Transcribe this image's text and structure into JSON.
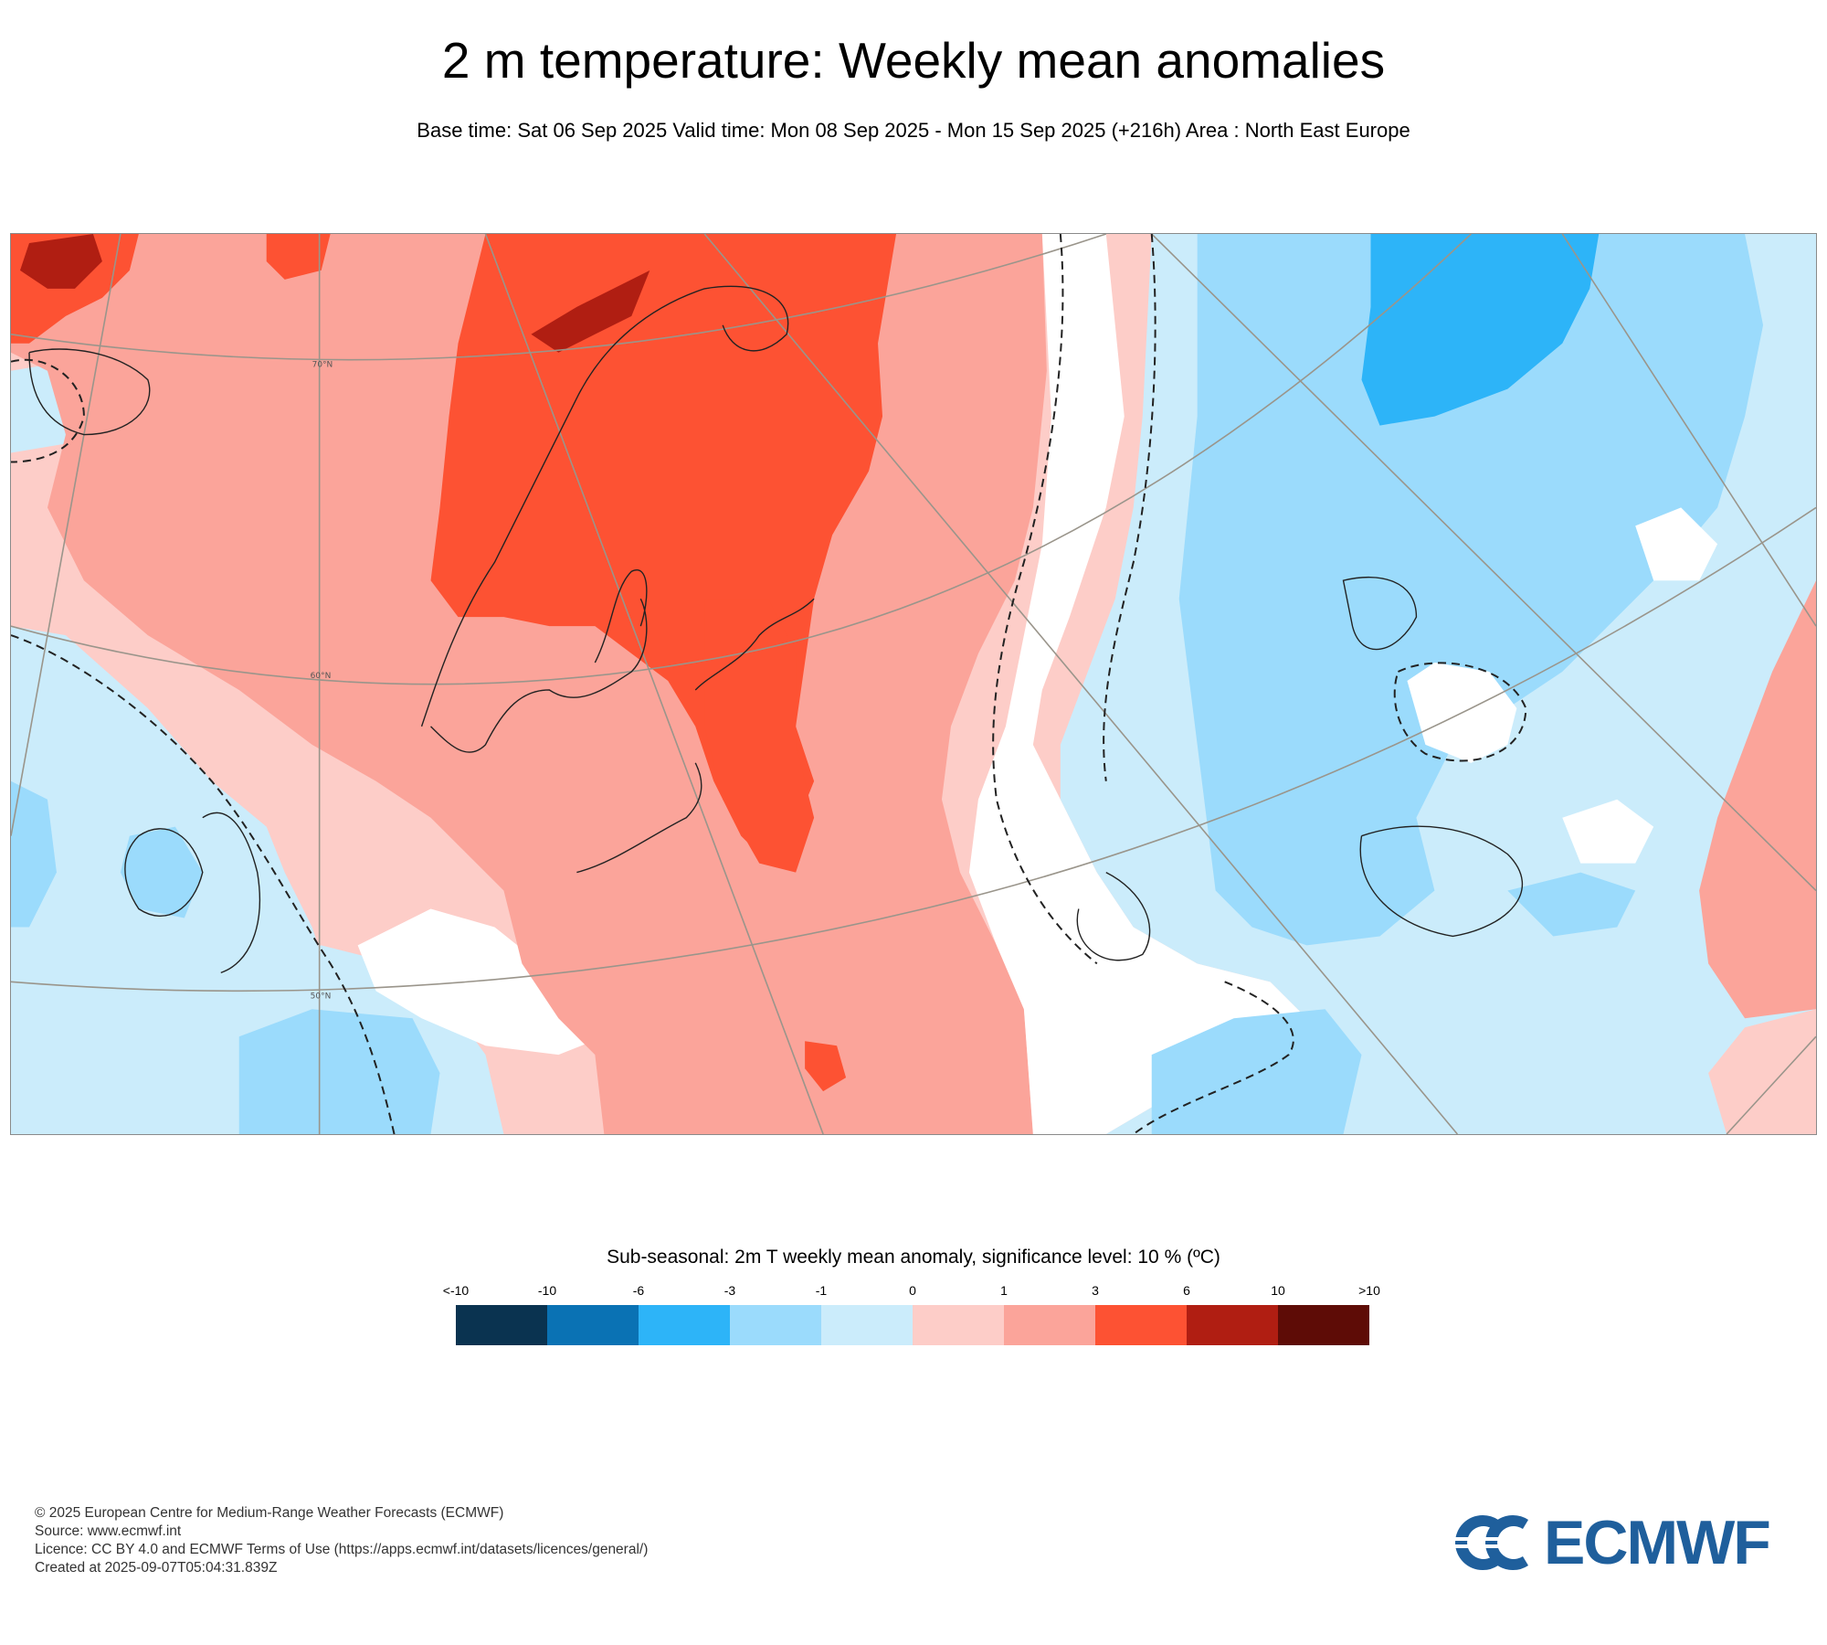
{
  "title": "2 m temperature: Weekly mean anomalies",
  "subtitle": "Base time: Sat 06 Sep 2025 Valid time: Mon 08 Sep 2025 - Mon 15 Sep 2025 (+216h) Area : North East Europe",
  "map": {
    "lat_labels": [
      "70°N",
      "60°N",
      "50°N"
    ],
    "region": "North East Europe"
  },
  "legend": {
    "title": "Sub-seasonal: 2m T weekly mean anomaly, significance level: 10 % (ºC)",
    "ticks": [
      "<-10",
      "-10",
      "-6",
      "-3",
      "-1",
      "0",
      "1",
      "3",
      "6",
      "10",
      ">10"
    ],
    "colors": [
      "#0a3350",
      "#0a72b4",
      "#2db4f8",
      "#9bdbfc",
      "#cbecfb",
      "#fdcdc8",
      "#fba49a",
      "#fd5233",
      "#b01e12",
      "#5e0c06"
    ]
  },
  "footer": {
    "copyright": "© 2025 European Centre for Medium-Range Weather Forecasts (ECMWF)",
    "source": "Source: www.ecmwf.int",
    "licence": "Licence: CC BY 4.0 and ECMWF Terms of Use (https://apps.ecmwf.int/datasets/licences/general/)",
    "created": "Created at 2025-09-07T05:04:31.839Z"
  },
  "logo": {
    "text": "ECMWF",
    "color": "#1f5f9c"
  }
}
